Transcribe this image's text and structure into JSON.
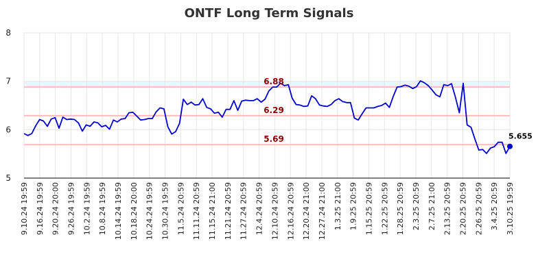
{
  "chart_data": {
    "type": "line",
    "title": "ONTF Long Term Signals",
    "xlabel": "",
    "ylabel": "",
    "ylim": [
      5,
      8
    ],
    "yticks": [
      "5",
      "6",
      "7",
      "8"
    ],
    "grid": true,
    "x_tick_labels": [
      "9.10.24 19:59",
      "9.16.24 19:59",
      "9.20.24 20:00",
      "9.26.24 19:59",
      "10.2.24 19:59",
      "10.8.24 19:59",
      "10.14.24 19:59",
      "10.18.24 20:00",
      "10.24.24 19:59",
      "10.30.24 19:59",
      "11.5.24 20:59",
      "11.11.24 20:59",
      "11.15.24 21:00",
      "11.21.24 20:59",
      "11.27.24 20:59",
      "12.4.24 20:59",
      "12.10.24 20:59",
      "12.16.24 20:59",
      "12.20.24 21:00",
      "12.27.24 21:00",
      "1.3.25 21:00",
      "1.9.25 20:59",
      "1.15.25 20:59",
      "1.22.25 20:59",
      "1.28.25 20:59",
      "2.3.25 20:59",
      "2.7.25 21:00",
      "2.13.25 20:59",
      "2.20.25 20:59",
      "2.26.25 20:59",
      "3.4.25 20:59",
      "3.10.25 19:59"
    ],
    "series": [
      {
        "color": "#0000cc",
        "values": [
          5.92,
          5.88,
          5.92,
          6.08,
          6.21,
          6.18,
          6.07,
          6.22,
          6.25,
          6.03,
          6.26,
          6.21,
          6.22,
          6.21,
          6.14,
          5.97,
          6.1,
          6.07,
          6.16,
          6.14,
          6.06,
          6.09,
          6.01,
          6.2,
          6.16,
          6.22,
          6.23,
          6.35,
          6.36,
          6.28,
          6.2,
          6.21,
          6.23,
          6.23,
          6.37,
          6.45,
          6.43,
          6.06,
          5.91,
          5.96,
          6.13,
          6.63,
          6.52,
          6.57,
          6.51,
          6.52,
          6.64,
          6.46,
          6.43,
          6.34,
          6.36,
          6.26,
          6.42,
          6.42,
          6.6,
          6.4,
          6.59,
          6.61,
          6.6,
          6.6,
          6.64,
          6.57,
          6.63,
          6.8,
          6.88,
          6.88,
          6.96,
          6.91,
          6.93,
          6.65,
          6.52,
          6.51,
          6.48,
          6.49,
          6.7,
          6.64,
          6.51,
          6.49,
          6.48,
          6.52,
          6.6,
          6.64,
          6.58,
          6.56,
          6.56,
          6.24,
          6.2,
          6.33,
          6.45,
          6.45,
          6.45,
          6.48,
          6.5,
          6.55,
          6.46,
          6.69,
          6.88,
          6.89,
          6.92,
          6.9,
          6.85,
          6.89,
          7.01,
          6.97,
          6.91,
          6.82,
          6.72,
          6.68,
          6.93,
          6.91,
          6.95,
          6.67,
          6.35,
          6.96,
          6.1,
          6.05,
          5.81,
          5.58,
          5.59,
          5.51,
          5.62,
          5.65,
          5.74,
          5.74,
          5.51,
          5.655
        ]
      }
    ],
    "levels": [
      {
        "value": 6.88,
        "label": "6.88",
        "color": "#ffbbbb"
      },
      {
        "value": 6.29,
        "label": "6.29",
        "color": "#ffbbbb"
      },
      {
        "value": 5.69,
        "label": "5.69",
        "color": "#ffbbbb"
      }
    ],
    "last_value_label": "5.655",
    "accent_band_color": "#eef4ff"
  }
}
